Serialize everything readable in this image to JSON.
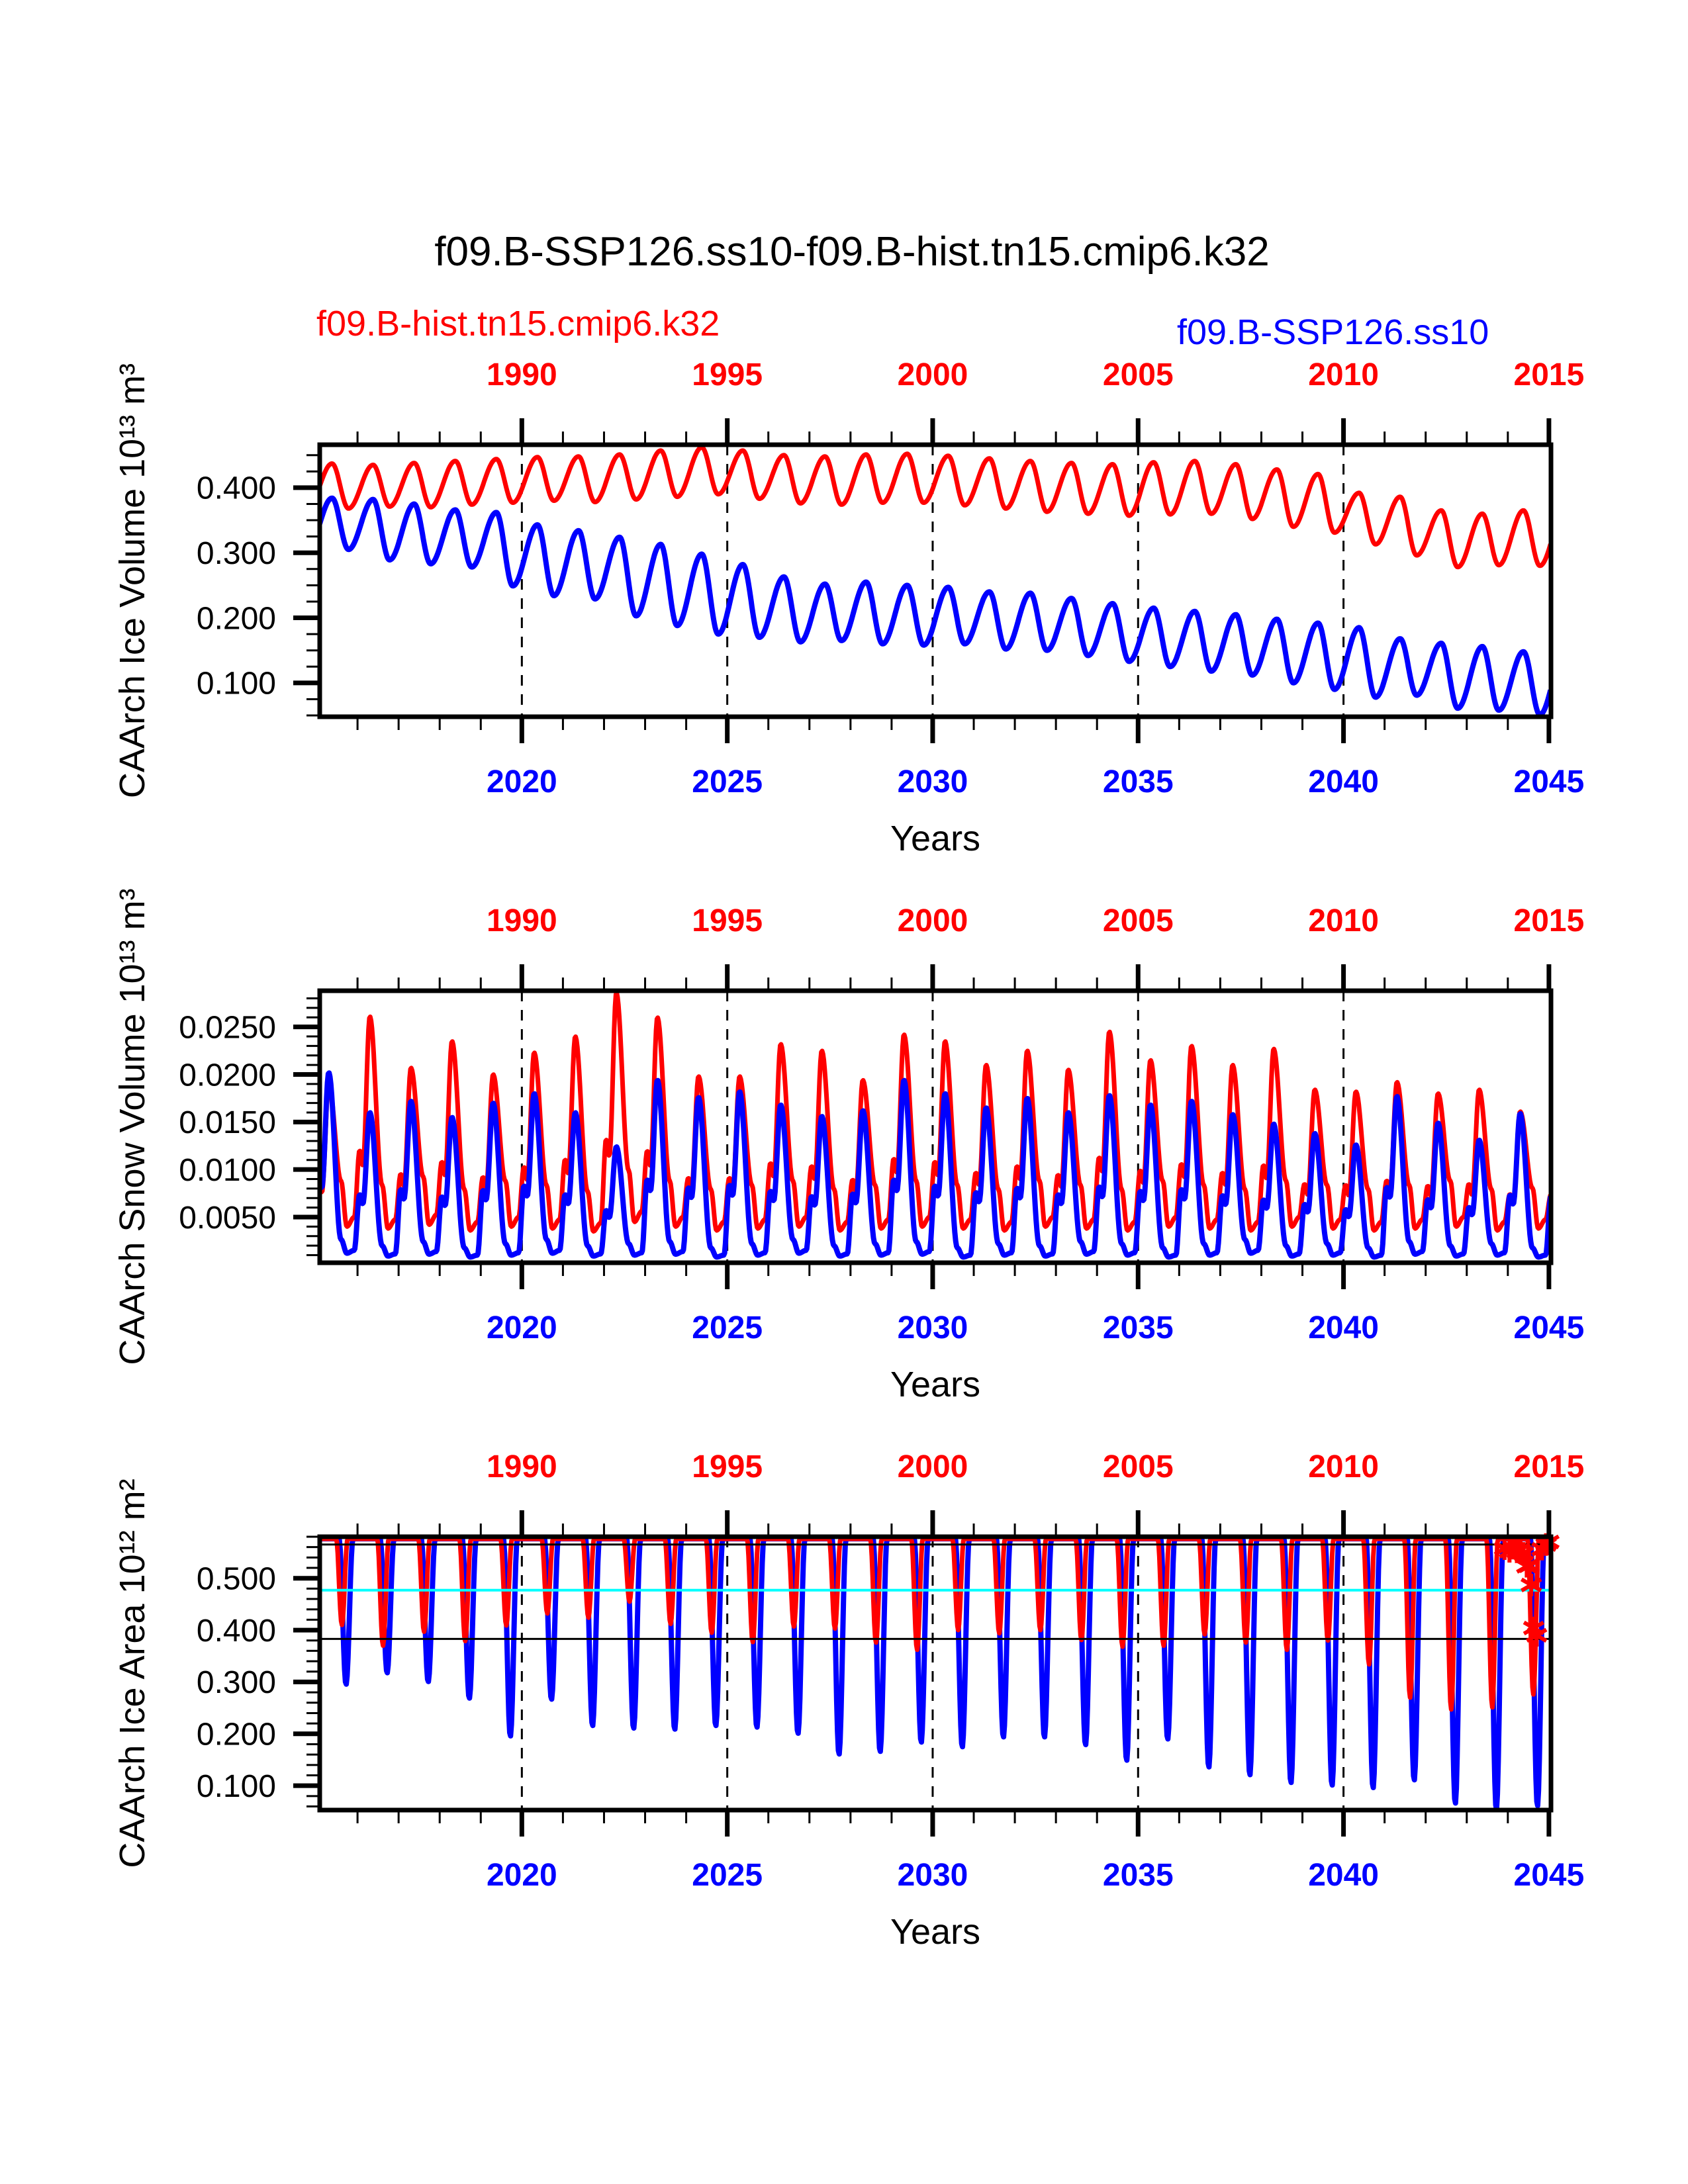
{
  "chart_data": {
    "type": "line",
    "title": "f09.B-SSP126.ss10-f09.B-hist.tn15.cmip6.k32",
    "series_labels": {
      "hist": "f09.B-hist.tn15.cmip6.k32",
      "ssp": "f09.B-SSP126.ss10"
    },
    "colors": {
      "hist": "#ff0000",
      "ssp": "#0000ff",
      "reference_cyan": "#00ffff",
      "axis": "#000000"
    },
    "x_axis": {
      "label": "Years",
      "display_range": [
        2015.08,
        2045.05
      ],
      "blue_tick_years": [
        2020,
        2025,
        2030,
        2035,
        2040,
        2045
      ],
      "blue_tick_labels": [
        "2020",
        "2025",
        "2030",
        "2035",
        "2040",
        "2045"
      ],
      "red_tick_labels": [
        "1990",
        "1995",
        "2000",
        "2005",
        "2010",
        "2015"
      ],
      "red_years_range": [
        1985,
        2015
      ],
      "blue_years_range": [
        2015,
        2045
      ],
      "dashed_years": [
        2020,
        2025,
        2030,
        2035,
        2040
      ],
      "minor_step": 1
    },
    "panels": [
      {
        "ylabel": "CAArch Ice Volume 10¹³ m³",
        "ylim": [
          0.048,
          0.466
        ],
        "ytick_values": [
          0.1,
          0.2,
          0.3,
          0.4
        ],
        "ytick_labels": [
          "0.100",
          "0.200",
          "0.300",
          "0.400"
        ],
        "y_minor_step": 0.025,
        "series": [
          {
            "id": "hist",
            "color": "#ff0000",
            "stroke": 7,
            "shape": {
              "type": "ice_volume",
              "peak_phase": 0.38,
              "trough_phase": 0.78
            },
            "start_year_actual": 1985,
            "annual_peaks": [
              0.437,
              0.435,
              0.438,
              0.441,
              0.444,
              0.447,
              0.448,
              0.451,
              0.457,
              0.462,
              0.457,
              0.45,
              0.448,
              0.451,
              0.452,
              0.449,
              0.445,
              0.441,
              0.438,
              0.436,
              0.439,
              0.441,
              0.436,
              0.428,
              0.421,
              0.392,
              0.386,
              0.365,
              0.36,
              0.365
            ],
            "annual_troughs": [
              0.368,
              0.371,
              0.37,
              0.374,
              0.377,
              0.38,
              0.378,
              0.382,
              0.386,
              0.39,
              0.383,
              0.376,
              0.374,
              0.377,
              0.377,
              0.373,
              0.368,
              0.363,
              0.36,
              0.357,
              0.359,
              0.36,
              0.352,
              0.34,
              0.331,
              0.313,
              0.296,
              0.278,
              0.281,
              0.28
            ]
          },
          {
            "id": "ssp",
            "color": "#0000ff",
            "stroke": 8,
            "shape": {
              "type": "ice_volume",
              "peak_phase": 0.38,
              "trough_phase": 0.78
            },
            "start_year_actual": 2015,
            "annual_peaks": [
              0.384,
              0.382,
              0.375,
              0.366,
              0.362,
              0.343,
              0.334,
              0.324,
              0.313,
              0.298,
              0.282,
              0.263,
              0.252,
              0.255,
              0.25,
              0.247,
              0.24,
              0.238,
              0.23,
              0.222,
              0.215,
              0.21,
              0.205,
              0.198,
              0.192,
              0.185,
              0.168,
              0.161,
              0.156,
              0.148
            ],
            "annual_troughs": [
              0.305,
              0.289,
              0.283,
              0.278,
              0.249,
              0.234,
              0.229,
              0.203,
              0.188,
              0.175,
              0.17,
              0.163,
              0.165,
              0.16,
              0.158,
              0.16,
              0.152,
              0.15,
              0.142,
              0.133,
              0.125,
              0.118,
              0.112,
              0.1,
              0.09,
              0.078,
              0.081,
              0.061,
              0.058,
              0.051
            ]
          }
        ]
      },
      {
        "ylabel": "CAArch Snow Volume 10¹³ m³",
        "ylim": [
          0.0002,
          0.0288
        ],
        "ytick_values": [
          0.005,
          0.01,
          0.015,
          0.02,
          0.025
        ],
        "ytick_labels": [
          "0.0050",
          "0.0100",
          "0.0150",
          "0.0200",
          "0.0250"
        ],
        "y_minor_step": 0.001,
        "series": [
          {
            "id": "hist",
            "color": "#ff0000",
            "stroke": 7,
            "shape": {
              "type": "snow",
              "peak_phase": 0.3
            },
            "start_year_actual": 1985,
            "annual_peaks": [
              0.019,
              0.0261,
              0.0207,
              0.0235,
              0.02,
              0.0223,
              0.024,
              0.0286,
              0.026,
              0.0198,
              0.0198,
              0.0232,
              0.0225,
              0.0194,
              0.0242,
              0.0235,
              0.021,
              0.0225,
              0.0205,
              0.0245,
              0.0215,
              0.023,
              0.021,
              0.0227,
              0.0184,
              0.0182,
              0.0192,
              0.018,
              0.0184,
              0.0161
            ],
            "annual_troughs": [
              0.004,
              0.0038,
              0.0042,
              0.0036,
              0.004,
              0.0038,
              0.0035,
              0.0045,
              0.004,
              0.0036,
              0.0038,
              0.004,
              0.0036,
              0.0038,
              0.004,
              0.0038,
              0.0036,
              0.004,
              0.0038,
              0.0036,
              0.004,
              0.0038,
              0.0036,
              0.004,
              0.0038,
              0.0036,
              0.0038,
              0.004,
              0.0036,
              0.0038
            ]
          },
          {
            "id": "ssp",
            "color": "#0000ff",
            "stroke": 8,
            "shape": {
              "type": "snow",
              "peak_phase": 0.3
            },
            "start_year_actual": 2015,
            "annual_peaks": [
              0.0202,
              0.016,
              0.0172,
              0.0155,
              0.017,
              0.018,
              0.016,
              0.0124,
              0.0194,
              0.0176,
              0.0182,
              0.0168,
              0.0156,
              0.0162,
              0.0194,
              0.018,
              0.0165,
              0.0175,
              0.016,
              0.0178,
              0.0168,
              0.0172,
              0.0158,
              0.0148,
              0.0138,
              0.0126,
              0.0177,
              0.0149,
              0.0131,
              0.0159
            ],
            "annual_troughs": [
              0.0012,
              0.0009,
              0.0011,
              0.0008,
              0.001,
              0.0012,
              0.0009,
              0.001,
              0.0011,
              0.0008,
              0.001,
              0.0012,
              0.0009,
              0.001,
              0.0011,
              0.0008,
              0.001,
              0.0009,
              0.0011,
              0.001,
              0.0008,
              0.001,
              0.0012,
              0.0009,
              0.001,
              0.0008,
              0.0011,
              0.0009,
              0.001,
              0.0008
            ]
          }
        ]
      },
      {
        "ylabel": "CAArch Ice Area 10¹² m²",
        "ylim": [
          0.053,
          0.58
        ],
        "ytick_values": [
          0.1,
          0.2,
          0.3,
          0.4,
          0.5
        ],
        "ytick_labels": [
          "0.100",
          "0.200",
          "0.300",
          "0.400",
          "0.500"
        ],
        "y_minor_step": 0.02,
        "hlines": [
          {
            "v": 0.565,
            "color": "#000000",
            "width": 3
          },
          {
            "v": 0.477,
            "color": "#00ffff",
            "width": 4
          },
          {
            "v": 0.383,
            "color": "#000000",
            "width": 3
          }
        ],
        "markers": {
          "color": "#ff0000",
          "symbol": "asterisk",
          "points": [
            {
              "t": 2043.92,
              "v": 0.557
            },
            {
              "t": 2044.04,
              "v": 0.552
            },
            {
              "t": 2044.13,
              "v": 0.558
            },
            {
              "t": 2044.22,
              "v": 0.551
            },
            {
              "t": 2044.3,
              "v": 0.555
            },
            {
              "t": 2044.38,
              "v": 0.548
            },
            {
              "t": 2044.46,
              "v": 0.523
            },
            {
              "t": 2044.52,
              "v": 0.524
            },
            {
              "t": 2044.57,
              "v": 0.487
            },
            {
              "t": 2044.63,
              "v": 0.404
            },
            {
              "t": 2044.7,
              "v": 0.39
            },
            {
              "t": 2044.83,
              "v": 0.556
            },
            {
              "t": 2044.93,
              "v": 0.565
            },
            {
              "t": 2045.0,
              "v": 0.57
            }
          ]
        },
        "series": [
          {
            "id": "ssp",
            "color": "#0000ff",
            "stroke": 8,
            "shape": {
              "type": "plateau_dip",
              "plateau": 0.576,
              "dip_center": 0.72,
              "dip_halfwidth": 0.17
            },
            "start_year_actual": 2015,
            "annual_dips": [
              0.295,
              0.317,
              0.3,
              0.268,
              0.195,
              0.266,
              0.215,
              0.21,
              0.208,
              0.215,
              0.212,
              0.2,
              0.16,
              0.165,
              0.183,
              0.174,
              0.193,
              0.193,
              0.178,
              0.148,
              0.189,
              0.135,
              0.12,
              0.105,
              0.1,
              0.095,
              0.11,
              0.065,
              0.053,
              0.06
            ]
          },
          {
            "id": "hist",
            "color": "#ff0000",
            "stroke": 7,
            "shape": {
              "type": "plateau_dip",
              "plateau": 0.576,
              "dip_center": 0.62,
              "dip_halfwidth": 0.14
            },
            "start_year_actual": 1985,
            "annual_dips": [
              0.41,
              0.37,
              0.397,
              0.379,
              0.409,
              0.432,
              0.424,
              0.455,
              0.412,
              0.395,
              0.377,
              0.407,
              0.403,
              0.376,
              0.362,
              0.4,
              0.394,
              0.4,
              0.381,
              0.368,
              0.37,
              0.392,
              0.376,
              0.362,
              0.38,
              0.334,
              0.27,
              0.247,
              0.251,
              0.276
            ]
          }
        ]
      }
    ]
  }
}
